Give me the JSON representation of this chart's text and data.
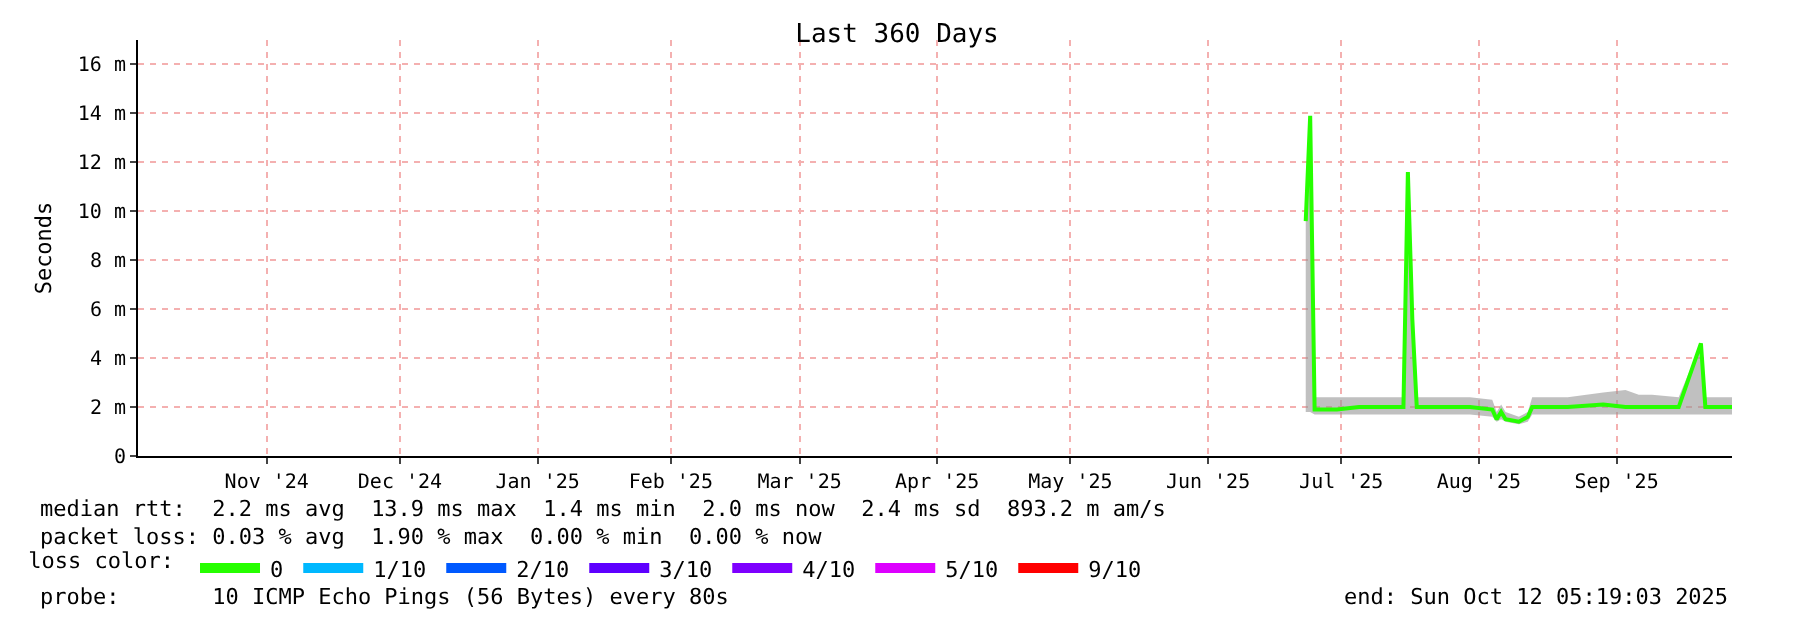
{
  "chart_data": {
    "type": "line",
    "title": "Last 360 Days",
    "ylabel": "Seconds",
    "legend_title": "loss color:",
    "x": [
      "2025-07-08",
      "2025-07-09",
      "2025-07-10",
      "2025-07-15",
      "2025-07-20",
      "2025-07-25",
      "2025-07-30",
      "2025-07-31",
      "2025-08-01",
      "2025-08-02",
      "2025-08-08",
      "2025-08-14",
      "2025-08-19",
      "2025-08-20",
      "2025-08-21",
      "2025-08-22",
      "2025-08-25",
      "2025-08-27",
      "2025-08-28",
      "2025-09-05",
      "2025-09-13",
      "2025-09-18",
      "2025-09-21",
      "2025-09-24",
      "2025-09-30",
      "2025-10-05",
      "2025-10-06",
      "2025-10-12"
    ],
    "series": [
      {
        "name": "0",
        "color": "#26ff00",
        "values": [
          9.6,
          13.9,
          1.9,
          1.9,
          2.0,
          2.0,
          2.0,
          11.6,
          5.6,
          2.0,
          2.0,
          2.0,
          1.9,
          1.5,
          1.8,
          1.5,
          1.4,
          1.6,
          2.0,
          2.0,
          2.1,
          2.0,
          2.0,
          2.0,
          2.0,
          4.6,
          2.0,
          2.0
        ],
        "lower": [
          1.8,
          1.8,
          1.7,
          1.7,
          1.7,
          1.7,
          1.7,
          1.7,
          1.7,
          1.7,
          1.7,
          1.7,
          1.6,
          1.4,
          1.5,
          1.4,
          1.3,
          1.4,
          1.7,
          1.7,
          1.7,
          1.7,
          1.7,
          1.7,
          1.7,
          1.7,
          1.7,
          1.7
        ],
        "upper": [
          9.6,
          13.9,
          2.4,
          2.4,
          2.4,
          2.4,
          2.4,
          11.6,
          5.6,
          2.4,
          2.4,
          2.4,
          2.3,
          1.8,
          2.1,
          1.8,
          1.6,
          1.8,
          2.4,
          2.4,
          2.6,
          2.7,
          2.5,
          2.5,
          2.4,
          4.6,
          2.4,
          2.4
        ]
      },
      {
        "name": "1/10",
        "color": "#00b8ff",
        "values": [
          null,
          null,
          null,
          null,
          null,
          null,
          null,
          null,
          null,
          null,
          null,
          null,
          null,
          null,
          null,
          null,
          null,
          null,
          null,
          null,
          null,
          null,
          null,
          null,
          null,
          null,
          null,
          null
        ]
      },
      {
        "name": "2/10",
        "color": "#0059ff",
        "values": [
          null,
          null,
          null,
          null,
          null,
          null,
          null,
          null,
          null,
          null,
          null,
          null,
          null,
          null,
          null,
          null,
          null,
          null,
          null,
          null,
          null,
          null,
          null,
          null,
          null,
          null,
          null,
          null
        ]
      },
      {
        "name": "3/10",
        "color": "#5e00ff",
        "values": [
          null,
          null,
          null,
          null,
          null,
          null,
          null,
          null,
          null,
          null,
          null,
          null,
          null,
          null,
          null,
          null,
          null,
          null,
          null,
          null,
          null,
          null,
          null,
          null,
          null,
          null,
          null,
          null
        ]
      },
      {
        "name": "4/10",
        "color": "#7e00ff",
        "values": [
          null,
          null,
          null,
          null,
          null,
          null,
          null,
          null,
          null,
          null,
          null,
          null,
          null,
          null,
          null,
          null,
          null,
          null,
          null,
          null,
          null,
          null,
          null,
          null,
          null,
          null,
          null,
          null
        ]
      },
      {
        "name": "5/10",
        "color": "#dd00ff",
        "values": [
          null,
          null,
          null,
          null,
          null,
          null,
          null,
          null,
          null,
          null,
          null,
          null,
          null,
          null,
          null,
          null,
          null,
          null,
          null,
          null,
          null,
          null,
          null,
          null,
          null,
          null,
          null,
          null
        ]
      },
      {
        "name": "9/10",
        "color": "#ff0000",
        "values": [
          null,
          null,
          null,
          null,
          null,
          null,
          null,
          null,
          null,
          null,
          null,
          null,
          null,
          null,
          null,
          null,
          null,
          null,
          null,
          null,
          null,
          null,
          null,
          null,
          null,
          null,
          null,
          null
        ]
      }
    ],
    "xlim": [
      "2024-10-18",
      "2025-10-12"
    ],
    "xticks": [
      {
        "value": "2024-11-16",
        "label": "Nov '24"
      },
      {
        "value": "2024-12-16",
        "label": "Dec '24"
      },
      {
        "value": "2025-01-16",
        "label": "Jan '25"
      },
      {
        "value": "2025-02-15",
        "label": "Feb '25"
      },
      {
        "value": "2025-03-16",
        "label": "Mar '25"
      },
      {
        "value": "2025-04-16",
        "label": "Apr '25"
      },
      {
        "value": "2025-05-16",
        "label": "May '25"
      },
      {
        "value": "2025-06-16",
        "label": "Jun '25"
      },
      {
        "value": "2025-07-16",
        "label": "Jul '25"
      },
      {
        "value": "2025-08-16",
        "label": "Aug '25"
      },
      {
        "value": "2025-09-16",
        "label": "Sep '25"
      }
    ],
    "ylim": [
      0,
      17
    ],
    "yticks": [
      0,
      {
        "value": 2,
        "label": "2 m"
      },
      {
        "value": 4,
        "label": "4 m"
      },
      {
        "value": 6,
        "label": "6 m"
      },
      {
        "value": 8,
        "label": "8 m"
      },
      {
        "value": 10,
        "label": "10 m"
      },
      {
        "value": 12,
        "label": "12 m"
      },
      {
        "value": 14,
        "label": "14 m"
      },
      {
        "value": 16,
        "label": "16 m"
      }
    ],
    "grid": true,
    "legend": "bottom left",
    "line_style": "solid",
    "marker": "none",
    "annotations": [
      "median rtt:  2.2 ms avg  13.9 ms max  1.4 ms min  2.0 ms now  2.4 ms sd  893.2 m am/s",
      "packet loss: 0.03 % avg  1.90 % max  0.00 % min  0.00 % now",
      "probe:       10 ICMP Echo Pings (56 Bytes) every 80s",
      "end: Sun Oct 12 05:19:03 2025"
    ]
  }
}
